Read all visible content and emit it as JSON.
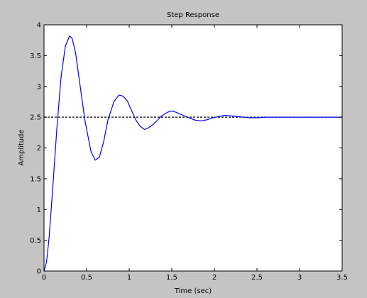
{
  "chart_data": {
    "type": "line",
    "title": "Step Response",
    "xlabel": "Time (sec)",
    "ylabel": "Amplitude",
    "xlim": [
      0,
      3.5
    ],
    "ylim": [
      0,
      4
    ],
    "xticks": [
      "0",
      "0.5",
      "1",
      "1.5",
      "2",
      "2.5",
      "3",
      "3.5"
    ],
    "yticks": [
      "0",
      "0.5",
      "1",
      "1.5",
      "2",
      "2.5",
      "3",
      "3.5",
      "4"
    ],
    "grid": false,
    "reference_line": {
      "y": 2.5,
      "style": "dashed",
      "color": "#000000"
    },
    "series": [
      {
        "color": "#0000ff",
        "x": [
          0,
          0.03,
          0.06,
          0.1,
          0.15,
          0.2,
          0.25,
          0.3,
          0.33,
          0.37,
          0.42,
          0.48,
          0.55,
          0.6,
          0.65,
          0.7,
          0.75,
          0.82,
          0.88,
          0.93,
          0.98,
          1.03,
          1.08,
          1.13,
          1.18,
          1.23,
          1.28,
          1.33,
          1.38,
          1.45,
          1.5,
          1.55,
          1.6,
          1.65,
          1.7,
          1.78,
          1.85,
          1.92,
          1.98,
          2.05,
          2.12,
          2.2,
          2.27,
          2.35,
          2.42,
          2.5,
          2.6,
          2.7,
          2.85,
          3.0,
          3.2,
          3.5
        ],
        "y": [
          0,
          0.15,
          0.55,
          1.3,
          2.3,
          3.15,
          3.65,
          3.82,
          3.78,
          3.55,
          3.05,
          2.45,
          1.95,
          1.8,
          1.85,
          2.1,
          2.45,
          2.75,
          2.86,
          2.84,
          2.76,
          2.6,
          2.45,
          2.35,
          2.3,
          2.33,
          2.38,
          2.45,
          2.52,
          2.58,
          2.6,
          2.58,
          2.55,
          2.52,
          2.49,
          2.45,
          2.44,
          2.46,
          2.49,
          2.51,
          2.53,
          2.52,
          2.51,
          2.5,
          2.49,
          2.49,
          2.5,
          2.5,
          2.5,
          2.5,
          2.5,
          2.5
        ]
      }
    ]
  }
}
